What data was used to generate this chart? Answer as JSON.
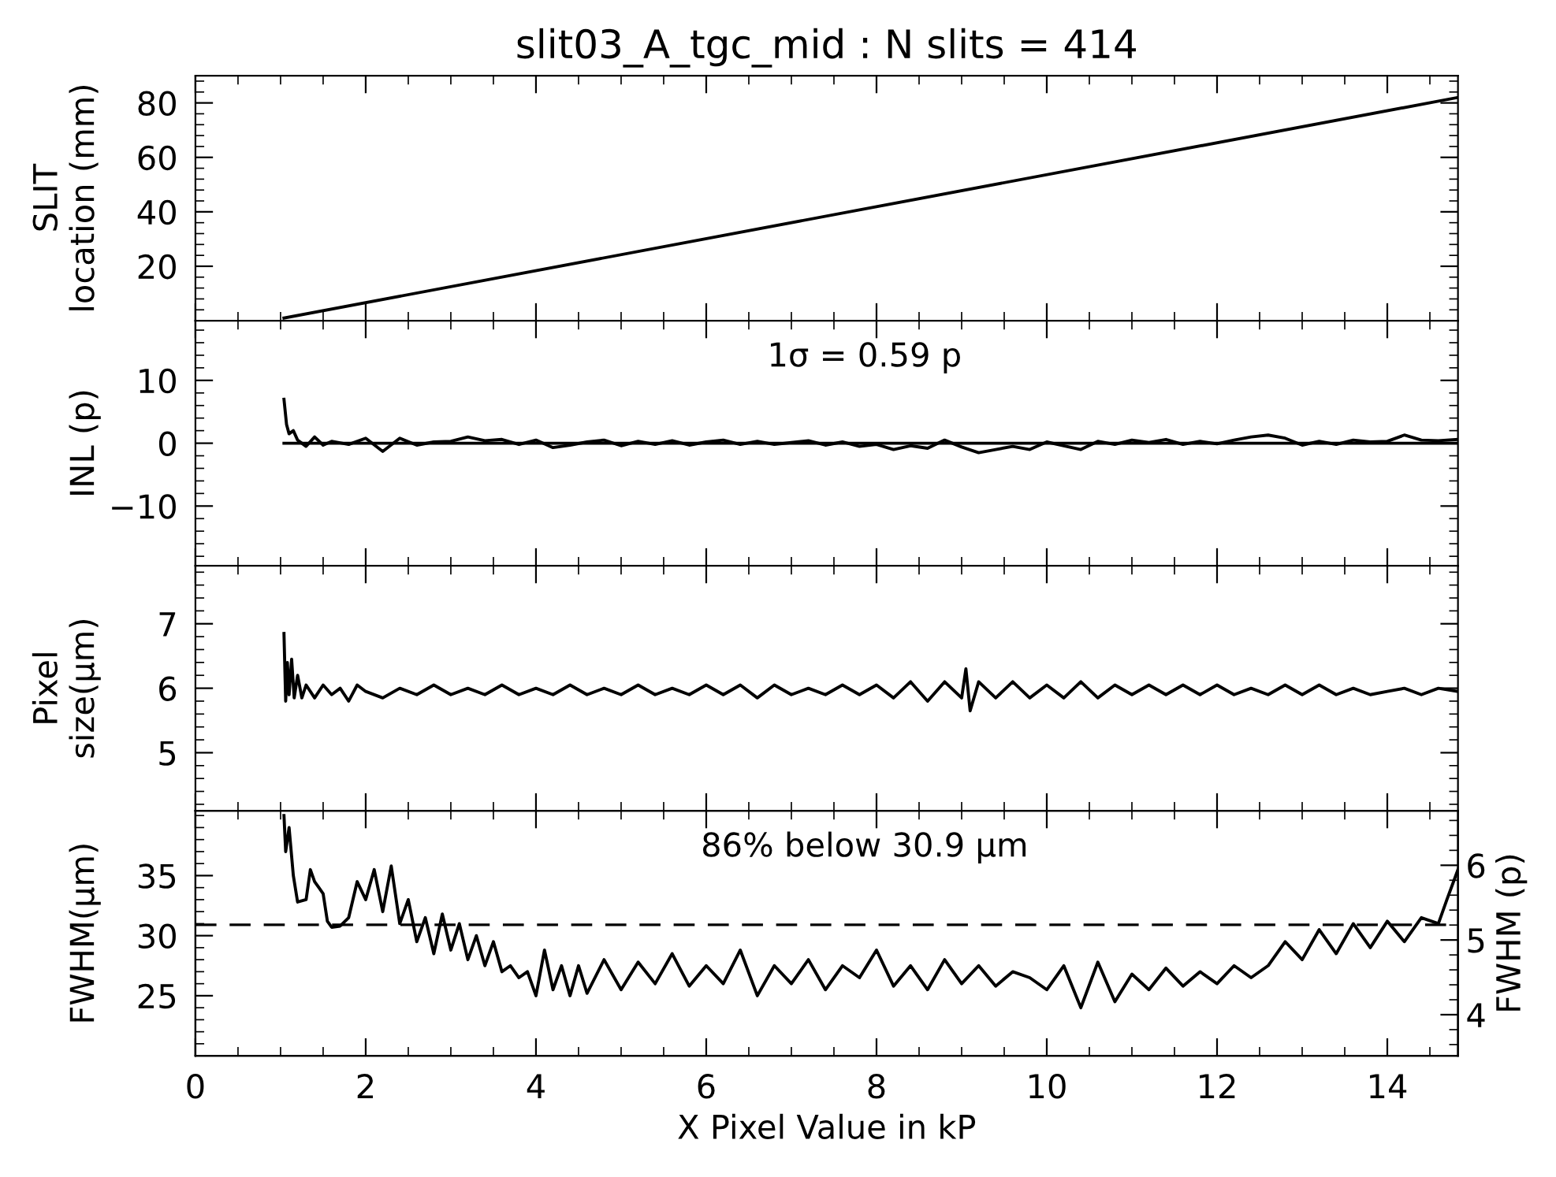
{
  "chart_data": [
    {
      "type": "line",
      "title": "slit03_A_tgc_mid : N slits = 414",
      "ylabel": "SLIT\nlocation (mm)",
      "xlim": [
        0,
        14.83
      ],
      "xticks": [
        0,
        2,
        4,
        6,
        8,
        10,
        12,
        14
      ],
      "ylim": [
        0,
        90
      ],
      "yticks": [
        20,
        40,
        60,
        80
      ],
      "tick_labels": "y",
      "grid": false,
      "legend": false,
      "series": [
        {
          "color": "#000000",
          "x": [
            1.04,
            14.83
          ],
          "values": [
            1,
            82
          ]
        }
      ]
    },
    {
      "type": "line",
      "ylabel": "INL (p)",
      "xlim": [
        0,
        14.83
      ],
      "xticks": [
        0,
        2,
        4,
        6,
        8,
        10,
        12,
        14
      ],
      "ylim": [
        -19.5,
        19.5
      ],
      "yticks": [
        {
          "value": -10,
          "label": "−10"
        },
        0,
        10
      ],
      "tick_labels": "y",
      "grid": false,
      "legend": false,
      "annotations": [
        "1σ = 0.59 p"
      ],
      "series": [
        {
          "color": "#000000",
          "x": [
            1.04,
            14.83
          ],
          "values": [
            0,
            0
          ]
        },
        {
          "color": "#000000",
          "x": [
            1.04,
            1.07,
            1.1,
            1.15,
            1.2,
            1.3,
            1.4,
            1.5,
            1.6,
            1.8,
            2.0,
            2.2,
            2.4,
            2.6,
            2.8,
            3.0,
            3.2,
            3.4,
            3.6,
            3.8,
            4.0,
            4.2,
            4.4,
            4.6,
            4.8,
            5.0,
            5.2,
            5.4,
            5.6,
            5.8,
            6.0,
            6.2,
            6.4,
            6.6,
            6.8,
            7.0,
            7.2,
            7.4,
            7.6,
            7.8,
            8.0,
            8.2,
            8.4,
            8.6,
            8.8,
            9.0,
            9.2,
            9.4,
            9.6,
            9.8,
            10.0,
            10.2,
            10.4,
            10.6,
            10.8,
            11.0,
            11.2,
            11.4,
            11.6,
            11.8,
            12.0,
            12.2,
            12.4,
            12.6,
            12.8,
            13.0,
            13.2,
            13.4,
            13.6,
            13.8,
            14.0,
            14.2,
            14.4,
            14.6,
            14.83
          ],
          "values": [
            7,
            3,
            1.5,
            2,
            0.5,
            -0.5,
            1,
            -0.3,
            0.3,
            -0.2,
            0.8,
            -1.3,
            0.8,
            -0.3,
            0.2,
            0.3,
            1.0,
            0.4,
            0.6,
            -0.2,
            0.5,
            -0.7,
            -0.3,
            0.2,
            0.5,
            -0.4,
            0.3,
            -0.2,
            0.4,
            -0.3,
            0.2,
            0.5,
            -0.2,
            0.3,
            -0.2,
            0.1,
            0.4,
            -0.3,
            0.2,
            -0.5,
            -0.2,
            -1.0,
            -0.4,
            -0.8,
            0.5,
            -0.6,
            -1.5,
            -1.0,
            -0.5,
            -1.0,
            0.2,
            -0.4,
            -1.0,
            0.3,
            -0.2,
            0.5,
            0.1,
            0.6,
            -0.2,
            0.3,
            -0.1,
            0.5,
            1.0,
            1.3,
            0.8,
            -0.3,
            0.3,
            -0.2,
            0.5,
            0.2,
            0.3,
            1.3,
            0.5,
            0.4,
            0.6
          ]
        }
      ]
    },
    {
      "type": "line",
      "ylabel": "Pixel\nsize(μm)",
      "xlim": [
        0,
        14.83
      ],
      "xticks": [
        0,
        2,
        4,
        6,
        8,
        10,
        12,
        14
      ],
      "ylim": [
        4.1,
        7.9
      ],
      "yticks": [
        5,
        6,
        7
      ],
      "tick_labels": "y",
      "grid": false,
      "legend": false,
      "series": [
        {
          "color": "#000000",
          "x": [
            1.04,
            1.06,
            1.08,
            1.1,
            1.13,
            1.16,
            1.2,
            1.25,
            1.3,
            1.4,
            1.5,
            1.6,
            1.7,
            1.8,
            1.9,
            2.0,
            2.2,
            2.4,
            2.6,
            2.8,
            3.0,
            3.2,
            3.4,
            3.6,
            3.8,
            4.0,
            4.2,
            4.4,
            4.6,
            4.8,
            5.0,
            5.2,
            5.4,
            5.6,
            5.8,
            6.0,
            6.2,
            6.4,
            6.6,
            6.8,
            7.0,
            7.2,
            7.4,
            7.6,
            7.8,
            8.0,
            8.2,
            8.4,
            8.6,
            8.8,
            9.0,
            9.05,
            9.1,
            9.2,
            9.4,
            9.6,
            9.8,
            10.0,
            10.2,
            10.4,
            10.6,
            10.8,
            11.0,
            11.2,
            11.4,
            11.6,
            11.8,
            12.0,
            12.2,
            12.4,
            12.6,
            12.8,
            13.0,
            13.2,
            13.4,
            13.6,
            13.8,
            14.0,
            14.2,
            14.4,
            14.6,
            14.83
          ],
          "values": [
            6.85,
            5.8,
            6.4,
            5.9,
            6.45,
            5.85,
            6.2,
            5.85,
            6.05,
            5.85,
            6.05,
            5.9,
            6.0,
            5.8,
            6.05,
            5.95,
            5.85,
            6.0,
            5.9,
            6.05,
            5.9,
            6.0,
            5.9,
            6.05,
            5.9,
            6.0,
            5.9,
            6.05,
            5.9,
            6.0,
            5.9,
            6.05,
            5.9,
            6.0,
            5.9,
            6.05,
            5.9,
            6.05,
            5.85,
            6.05,
            5.9,
            6.0,
            5.9,
            6.05,
            5.9,
            6.05,
            5.85,
            6.1,
            5.8,
            6.1,
            5.85,
            6.3,
            5.65,
            6.1,
            5.85,
            6.1,
            5.85,
            6.05,
            5.85,
            6.1,
            5.85,
            6.05,
            5.9,
            6.05,
            5.9,
            6.05,
            5.9,
            6.05,
            5.9,
            6.0,
            5.9,
            6.05,
            5.9,
            6.05,
            5.9,
            6.0,
            5.9,
            5.95,
            6.0,
            5.9,
            6.0,
            5.95
          ]
        }
      ]
    },
    {
      "type": "line",
      "xlabel": "X Pixel Value in kP",
      "ylabel": "FWHM(μm)",
      "y2label": "FWHM (p)",
      "xlim": [
        0,
        14.83
      ],
      "xticks": [
        0,
        2,
        4,
        6,
        8,
        10,
        12,
        14
      ],
      "ylim": [
        20,
        40.4
      ],
      "yticks": [
        25,
        30,
        35
      ],
      "y2lim": [
        3.45,
        6.73
      ],
      "y2ticks": [
        4,
        5,
        6
      ],
      "grid": false,
      "legend": false,
      "annotations": [
        "86% below 30.9 μm"
      ],
      "ref_lines": [
        {
          "axis": "y",
          "value": 30.9,
          "color": "#000000",
          "line_style": "dashed"
        }
      ],
      "series": [
        {
          "color": "#000000",
          "x": [
            1.04,
            1.06,
            1.1,
            1.15,
            1.2,
            1.3,
            1.35,
            1.4,
            1.45,
            1.5,
            1.55,
            1.6,
            1.7,
            1.8,
            1.9,
            2.0,
            2.1,
            2.2,
            2.3,
            2.4,
            2.5,
            2.6,
            2.7,
            2.8,
            2.9,
            3.0,
            3.1,
            3.2,
            3.3,
            3.4,
            3.5,
            3.6,
            3.7,
            3.8,
            3.9,
            4.0,
            4.1,
            4.2,
            4.3,
            4.4,
            4.5,
            4.6,
            4.8,
            5.0,
            5.2,
            5.4,
            5.6,
            5.8,
            6.0,
            6.2,
            6.4,
            6.6,
            6.8,
            7.0,
            7.2,
            7.4,
            7.6,
            7.8,
            8.0,
            8.2,
            8.4,
            8.6,
            8.8,
            9.0,
            9.2,
            9.4,
            9.6,
            9.8,
            10.0,
            10.2,
            10.4,
            10.6,
            10.8,
            11.0,
            11.2,
            11.4,
            11.6,
            11.8,
            12.0,
            12.2,
            12.4,
            12.6,
            12.8,
            13.0,
            13.2,
            13.4,
            13.6,
            13.8,
            14.0,
            14.2,
            14.4,
            14.6,
            14.7,
            14.83
          ],
          "values": [
            40,
            37,
            39,
            35,
            32.8,
            33,
            35.5,
            34.5,
            34,
            33.5,
            31.2,
            30.7,
            30.8,
            31.5,
            34.5,
            33,
            35.5,
            32,
            35.8,
            31,
            33,
            29.5,
            31.5,
            28.5,
            31.8,
            28.8,
            31,
            28,
            30,
            27.5,
            29.5,
            27,
            27.5,
            26.5,
            27,
            25,
            28.8,
            25.5,
            27.5,
            25,
            27.5,
            25.2,
            28,
            25.5,
            27.8,
            26,
            28.5,
            25.8,
            27.5,
            26,
            28.8,
            25,
            27.5,
            26,
            28,
            25.5,
            27.5,
            26.5,
            28.8,
            25.8,
            27.5,
            25.5,
            28,
            26,
            27.5,
            25.8,
            27,
            26.5,
            25.5,
            27.5,
            24,
            27.8,
            24.5,
            26.8,
            25.5,
            27.3,
            25.8,
            27,
            26,
            27.5,
            26.5,
            27.5,
            29.5,
            28,
            30.5,
            28.5,
            31,
            29,
            31.2,
            29.5,
            31.5,
            31,
            33,
            35.5
          ]
        }
      ]
    }
  ]
}
